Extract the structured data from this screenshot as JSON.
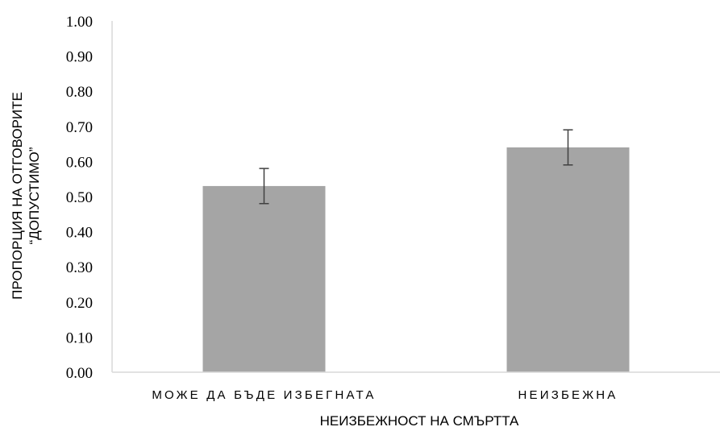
{
  "chart_data": {
    "type": "bar",
    "title": "",
    "xlabel": "НЕИЗБЕЖНОСТ НА СМЪРТТА",
    "ylabel_lines": [
      "ПРОПОРЦИЯ НА ОТГОВОРИТЕ",
      "“ДОПУСТИМО”"
    ],
    "categories": [
      "МОЖЕ ДА БЪДЕ ИЗБЕГНАТА",
      "НЕИЗБЕЖНА"
    ],
    "values": [
      0.53,
      0.64
    ],
    "error": [
      0.05,
      0.05
    ],
    "ylim": [
      0,
      1
    ],
    "yticks": [
      "0.00",
      "0.10",
      "0.20",
      "0.30",
      "0.40",
      "0.50",
      "0.60",
      "0.70",
      "0.80",
      "0.90",
      "1.00"
    ],
    "grid": false,
    "bar_color": "#a5a5a5",
    "axis_color": "#d9d9d9",
    "error_color": "#404040"
  }
}
